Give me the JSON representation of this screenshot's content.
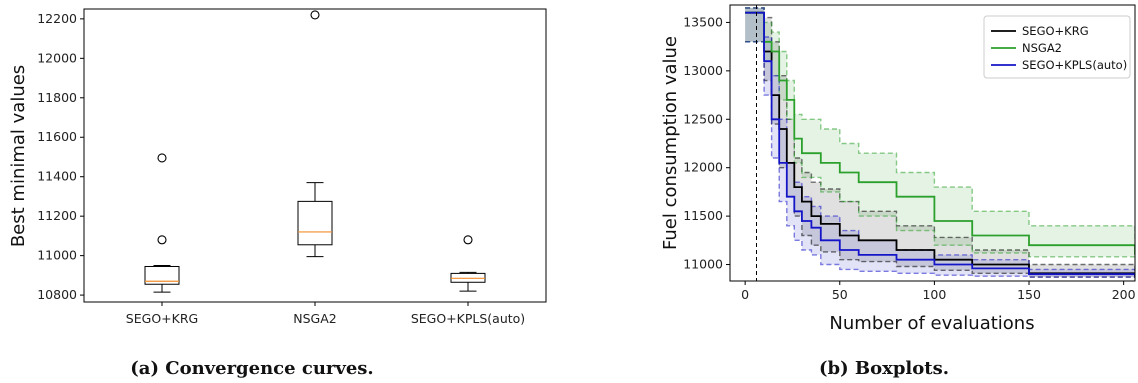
{
  "chart_data": [
    {
      "type": "boxplot",
      "ylabel": "Best minimal values",
      "ylim": [
        10765,
        12250
      ],
      "yticks": [
        "10800",
        "11000",
        "11200",
        "11400",
        "11600",
        "11800",
        "12000",
        "12200"
      ],
      "caption": "(a) Convergence curves.",
      "categories": [
        "SEGO+KRG",
        "NSGA2",
        "SEGO+KPLS(auto)"
      ],
      "boxes": [
        {
          "label": "SEGO+KRG",
          "whislo": 10815,
          "q1": 10855,
          "med": 10870,
          "q3": 10945,
          "whishi": 10950,
          "fliers": [
            11080,
            11495
          ]
        },
        {
          "label": "NSGA2",
          "whislo": 10995,
          "q1": 11055,
          "med": 11120,
          "q3": 11275,
          "whishi": 11370,
          "fliers": [
            12220
          ]
        },
        {
          "label": "SEGO+KPLS(auto)",
          "whislo": 10820,
          "q1": 10865,
          "med": 10885,
          "q3": 10910,
          "whishi": 10915,
          "fliers": [
            11080
          ]
        }
      ],
      "colors": {
        "median": "#f28e2b",
        "box": "#000000"
      }
    },
    {
      "type": "line",
      "xlabel": "Number of evaluations",
      "ylabel": "Fuel consumption value",
      "xlim": [
        -8,
        206
      ],
      "ylim": [
        10830,
        13680
      ],
      "xticks": [
        "0",
        "50",
        "100",
        "150",
        "200"
      ],
      "yticks": [
        "11000",
        "11500",
        "12000",
        "12500",
        "13000",
        "13500"
      ],
      "caption": "(b) Boxplots.",
      "vline_x": 6,
      "series": [
        {
          "name": "SEGO+KRG",
          "color": "#000000",
          "x": [
            0,
            6,
            10,
            14,
            18,
            22,
            26,
            30,
            35,
            40,
            50,
            60,
            80,
            100,
            120,
            150,
            206
          ],
          "mean": [
            13600,
            13600,
            13200,
            12750,
            12400,
            12050,
            11800,
            11650,
            11500,
            11420,
            11300,
            11250,
            11150,
            11050,
            11000,
            10910,
            10880
          ],
          "upper": [
            13650,
            13650,
            13550,
            13300,
            12950,
            12500,
            12100,
            11950,
            11850,
            11780,
            11650,
            11550,
            11400,
            11280,
            11150,
            11000,
            10920
          ],
          "lower": [
            13300,
            13300,
            12900,
            12450,
            12000,
            11700,
            11500,
            11300,
            11200,
            11130,
            11050,
            11030,
            10980,
            10940,
            10910,
            10870,
            10860
          ]
        },
        {
          "name": "NSGA2",
          "color": "#2ca02c",
          "x": [
            0,
            6,
            10,
            14,
            18,
            22,
            26,
            30,
            40,
            50,
            60,
            80,
            100,
            120,
            150,
            206
          ],
          "mean": [
            13600,
            13600,
            13300,
            13200,
            12900,
            12700,
            12300,
            12150,
            12050,
            11950,
            11850,
            11700,
            11450,
            11300,
            11200,
            11100
          ],
          "upper": [
            13650,
            13650,
            13500,
            13400,
            13200,
            12900,
            12550,
            12500,
            12400,
            12250,
            12150,
            11950,
            11800,
            11550,
            11400,
            11250
          ],
          "lower": [
            13300,
            13300,
            13100,
            12950,
            12700,
            12500,
            12050,
            11900,
            11750,
            11650,
            11500,
            11350,
            11200,
            11120,
            11080,
            11050
          ]
        },
        {
          "name": "SEGO+KPLS(auto)",
          "color": "#1515c8",
          "x": [
            0,
            6,
            10,
            14,
            18,
            22,
            26,
            30,
            35,
            40,
            50,
            60,
            80,
            100,
            120,
            150,
            206
          ],
          "mean": [
            13600,
            13600,
            13100,
            12500,
            12050,
            11700,
            11550,
            11450,
            11380,
            11250,
            11150,
            11100,
            11050,
            11000,
            10960,
            10900,
            10880
          ],
          "upper": [
            13650,
            13650,
            13350,
            12950,
            12500,
            12050,
            11850,
            11700,
            11600,
            11500,
            11350,
            11250,
            11150,
            11100,
            11050,
            10950,
            10900
          ],
          "lower": [
            13300,
            13300,
            12750,
            12100,
            11650,
            11400,
            11250,
            11150,
            11100,
            11000,
            10950,
            10930,
            10910,
            10890,
            10880,
            10870,
            10865
          ]
        }
      ],
      "legend_position": "top-right"
    }
  ]
}
